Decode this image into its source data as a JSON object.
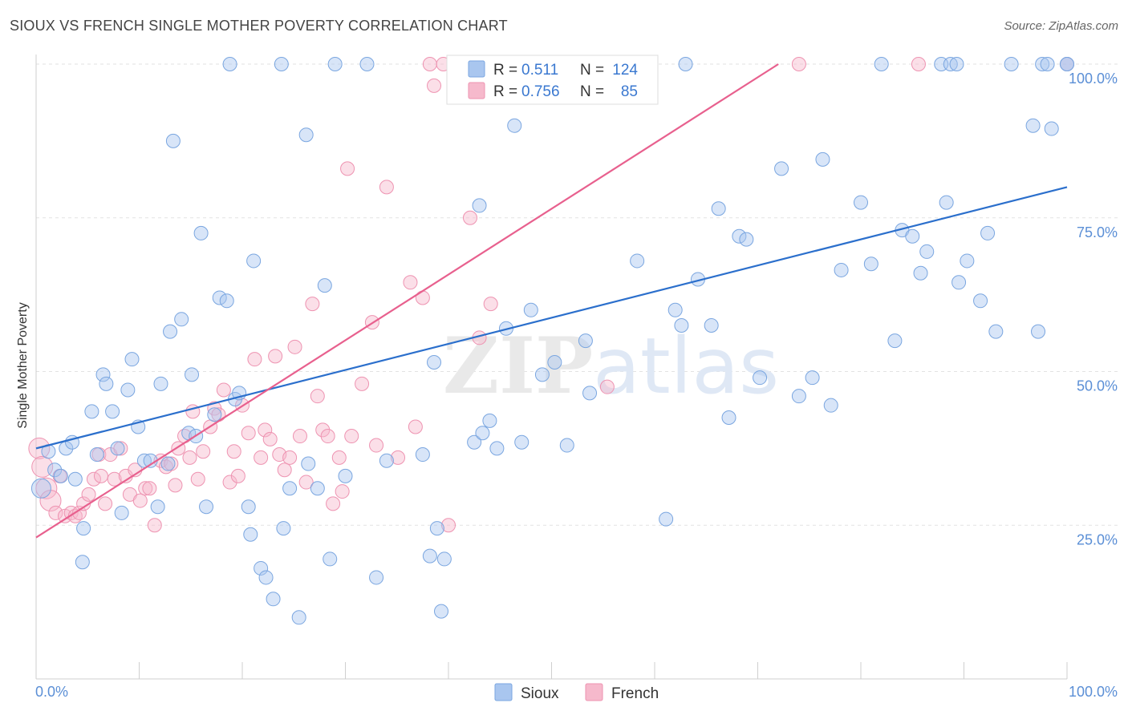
{
  "header": {
    "title": "SIOUX VS FRENCH SINGLE MOTHER POVERTY CORRELATION CHART",
    "source": "Source: ZipAtlas.com"
  },
  "watermark": "ZIPatlas",
  "chart_data": {
    "type": "scatter",
    "title": "SIOUX VS FRENCH SINGLE MOTHER POVERTY CORRELATION CHART",
    "xlabel": "",
    "ylabel": "Single Mother Poverty",
    "xlim": [
      0,
      100
    ],
    "ylim": [
      0,
      100
    ],
    "x_tick_labels": [
      "0.0%",
      "100.0%"
    ],
    "y_ticks": [
      25,
      50,
      75,
      100
    ],
    "y_tick_labels": [
      "25.0%",
      "50.0%",
      "75.0%",
      "100.0%"
    ],
    "grid": true,
    "legend": [
      {
        "name": "Sioux",
        "r_label": "R =",
        "r": "0.511",
        "n_label": "N =",
        "n": "124"
      },
      {
        "name": "French",
        "r_label": "R =",
        "r": "0.756",
        "n_label": "N =",
        "n": "85"
      }
    ],
    "colors": {
      "sioux_fill": "#a9c6ef",
      "sioux_stroke": "#7aa6e0",
      "sioux_line": "#2b6fcc",
      "french_fill": "#f6b9cc",
      "french_stroke": "#ee93b1",
      "french_line": "#e8608e"
    },
    "trendlines": [
      {
        "series": "Sioux",
        "x": [
          0,
          100
        ],
        "y": [
          37.5,
          80
        ]
      },
      {
        "series": "French",
        "x": [
          0,
          72
        ],
        "y": [
          23,
          100
        ]
      }
    ],
    "series": [
      {
        "name": "Sioux",
        "points": [
          [
            0.5,
            31
          ],
          [
            1.2,
            37
          ],
          [
            1.8,
            34
          ],
          [
            2.4,
            33
          ],
          [
            2.9,
            37.5
          ],
          [
            3.5,
            38.5
          ],
          [
            3.8,
            32.5
          ],
          [
            4.5,
            19
          ],
          [
            4.6,
            24.5
          ],
          [
            5.4,
            43.5
          ],
          [
            5.9,
            36.5
          ],
          [
            6.5,
            49.5
          ],
          [
            6.8,
            48
          ],
          [
            7.4,
            43.5
          ],
          [
            7.9,
            37.5
          ],
          [
            8.3,
            27
          ],
          [
            8.9,
            47
          ],
          [
            9.3,
            52
          ],
          [
            9.9,
            41
          ],
          [
            10.5,
            35.5
          ],
          [
            11.1,
            35.5
          ],
          [
            11.8,
            28
          ],
          [
            12.1,
            48
          ],
          [
            12.8,
            35
          ],
          [
            13.0,
            56.5
          ],
          [
            13.3,
            87.5
          ],
          [
            14.1,
            58.5
          ],
          [
            14.8,
            40
          ],
          [
            15.1,
            49.5
          ],
          [
            15.5,
            39.5
          ],
          [
            16.0,
            72.5
          ],
          [
            16.5,
            28
          ],
          [
            17.3,
            43
          ],
          [
            17.8,
            62
          ],
          [
            18.5,
            61.5
          ],
          [
            18.8,
            100
          ],
          [
            19.3,
            45.5
          ],
          [
            19.7,
            46.5
          ],
          [
            20.6,
            28
          ],
          [
            20.8,
            23.5
          ],
          [
            21.1,
            68
          ],
          [
            21.8,
            18
          ],
          [
            22.3,
            16.5
          ],
          [
            23.0,
            13
          ],
          [
            23.8,
            100
          ],
          [
            24.0,
            24.5
          ],
          [
            24.6,
            31
          ],
          [
            25.5,
            10
          ],
          [
            26.2,
            88.5
          ],
          [
            26.4,
            35
          ],
          [
            27.3,
            31
          ],
          [
            28.0,
            64
          ],
          [
            28.5,
            19.5
          ],
          [
            29.0,
            100
          ],
          [
            30.0,
            33
          ],
          [
            32.1,
            100
          ],
          [
            33.0,
            16.5
          ],
          [
            34.0,
            35.5
          ],
          [
            37.5,
            36.5
          ],
          [
            38.2,
            20
          ],
          [
            38.6,
            51.5
          ],
          [
            38.9,
            24.5
          ],
          [
            39.3,
            11
          ],
          [
            39.6,
            19.5
          ],
          [
            42.5,
            38.5
          ],
          [
            43.0,
            77
          ],
          [
            43.3,
            40
          ],
          [
            44.0,
            42
          ],
          [
            44.7,
            37.5
          ],
          [
            45.2,
            100
          ],
          [
            45.6,
            57
          ],
          [
            46.4,
            90
          ],
          [
            47.1,
            38.5
          ],
          [
            48.0,
            60
          ],
          [
            49.1,
            49.5
          ],
          [
            50.3,
            51.5
          ],
          [
            51.5,
            38
          ],
          [
            51.8,
            100
          ],
          [
            53.3,
            55
          ],
          [
            53.7,
            46.5
          ],
          [
            57.2,
            100
          ],
          [
            58.3,
            68
          ],
          [
            61.1,
            26
          ],
          [
            62.0,
            60
          ],
          [
            62.6,
            57.5
          ],
          [
            63.0,
            100
          ],
          [
            64.2,
            65
          ],
          [
            65.5,
            57.5
          ],
          [
            66.2,
            76.5
          ],
          [
            67.2,
            42.5
          ],
          [
            68.2,
            72
          ],
          [
            68.9,
            71.5
          ],
          [
            70.2,
            49
          ],
          [
            72.3,
            83
          ],
          [
            74.0,
            46
          ],
          [
            75.3,
            49
          ],
          [
            76.3,
            84.5
          ],
          [
            77.1,
            44.5
          ],
          [
            78.1,
            66.5
          ],
          [
            80.0,
            77.5
          ],
          [
            81.0,
            67.5
          ],
          [
            82.0,
            100
          ],
          [
            83.3,
            55
          ],
          [
            84.0,
            73
          ],
          [
            85.0,
            72
          ],
          [
            85.8,
            66
          ],
          [
            86.4,
            69.5
          ],
          [
            87.8,
            100
          ],
          [
            88.3,
            77.5
          ],
          [
            88.7,
            100
          ],
          [
            89.3,
            100
          ],
          [
            89.5,
            64.5
          ],
          [
            90.3,
            68
          ],
          [
            91.6,
            61.5
          ],
          [
            92.3,
            72.5
          ],
          [
            93.1,
            56.5
          ],
          [
            94.6,
            100
          ],
          [
            96.7,
            90
          ],
          [
            97.2,
            56.5
          ],
          [
            97.6,
            100
          ],
          [
            98.1,
            100
          ],
          [
            98.5,
            89.5
          ],
          [
            100.0,
            100
          ],
          [
            100.0,
            100
          ]
        ]
      },
      {
        "name": "French",
        "points": [
          [
            0.3,
            37.5
          ],
          [
            0.6,
            34.5
          ],
          [
            1.0,
            31
          ],
          [
            1.4,
            29
          ],
          [
            1.9,
            27
          ],
          [
            2.3,
            33
          ],
          [
            2.8,
            26.5
          ],
          [
            3.4,
            27
          ],
          [
            3.8,
            26.5
          ],
          [
            4.2,
            27
          ],
          [
            4.6,
            28.5
          ],
          [
            5.1,
            30
          ],
          [
            5.6,
            32.5
          ],
          [
            6.1,
            36.5
          ],
          [
            6.3,
            33
          ],
          [
            6.7,
            28.5
          ],
          [
            7.2,
            36.5
          ],
          [
            7.6,
            32.5
          ],
          [
            8.2,
            37.5
          ],
          [
            8.7,
            33
          ],
          [
            9.1,
            30
          ],
          [
            9.6,
            34
          ],
          [
            10.1,
            29
          ],
          [
            10.6,
            31
          ],
          [
            11.0,
            31
          ],
          [
            11.5,
            25
          ],
          [
            12.1,
            35.5
          ],
          [
            12.6,
            34.5
          ],
          [
            13.1,
            35
          ],
          [
            13.5,
            31.5
          ],
          [
            13.8,
            37.5
          ],
          [
            14.4,
            39.5
          ],
          [
            14.9,
            36
          ],
          [
            15.2,
            43.5
          ],
          [
            15.7,
            32.5
          ],
          [
            16.2,
            37
          ],
          [
            16.9,
            41
          ],
          [
            17.3,
            44
          ],
          [
            17.7,
            43
          ],
          [
            18.2,
            47
          ],
          [
            18.8,
            32
          ],
          [
            19.2,
            37
          ],
          [
            19.6,
            33
          ],
          [
            20.0,
            44.5
          ],
          [
            20.6,
            40
          ],
          [
            21.2,
            52
          ],
          [
            21.8,
            36
          ],
          [
            22.2,
            40.5
          ],
          [
            22.7,
            39
          ],
          [
            23.2,
            52.5
          ],
          [
            23.6,
            36.5
          ],
          [
            24.1,
            34
          ],
          [
            24.6,
            36
          ],
          [
            25.1,
            54
          ],
          [
            25.6,
            39.5
          ],
          [
            26.2,
            32
          ],
          [
            26.8,
            61
          ],
          [
            27.3,
            46
          ],
          [
            27.8,
            40.5
          ],
          [
            28.3,
            39.5
          ],
          [
            28.8,
            28.5
          ],
          [
            29.4,
            36
          ],
          [
            29.7,
            30.5
          ],
          [
            30.2,
            83
          ],
          [
            30.6,
            39.5
          ],
          [
            31.6,
            48
          ],
          [
            32.6,
            58
          ],
          [
            33.0,
            38
          ],
          [
            34.0,
            80
          ],
          [
            35.1,
            36
          ],
          [
            36.3,
            64.5
          ],
          [
            36.8,
            41
          ],
          [
            37.5,
            62
          ],
          [
            38.2,
            100
          ],
          [
            38.6,
            96.5
          ],
          [
            39.5,
            100
          ],
          [
            40.0,
            25
          ],
          [
            42.1,
            75
          ],
          [
            43.0,
            55.5
          ],
          [
            44.1,
            61
          ],
          [
            48.6,
            100
          ],
          [
            55.4,
            47.5
          ],
          [
            74.0,
            100
          ],
          [
            85.6,
            100
          ],
          [
            100.0,
            100
          ]
        ]
      }
    ]
  },
  "bottom_legend": [
    {
      "name": "Sioux"
    },
    {
      "name": "French"
    }
  ]
}
